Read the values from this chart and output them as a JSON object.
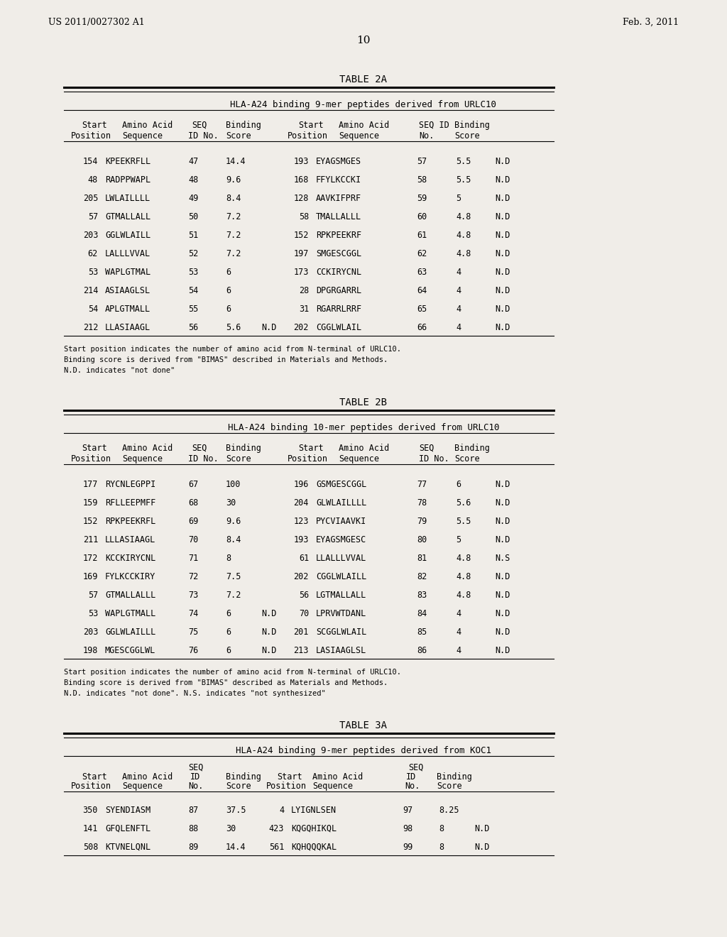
{
  "header_left": "US 2011/0027302 A1",
  "header_right": "Feb. 3, 2011",
  "page_number": "10",
  "bg_color": "#f0ede8",
  "table2a_title": "TABLE 2A",
  "table2a_subtitle": "HLA-A24 binding 9-mer peptides derived from URLC10",
  "table2a_rows": [
    [
      "154",
      "KPEEKRFLL",
      "47",
      "14.4",
      "",
      "193",
      "EYAGSMGES",
      "57",
      "5.5",
      "N.D"
    ],
    [
      "48",
      "RADPPWAPL",
      "48",
      "9.6",
      "",
      "168",
      "FFYLKCCKI",
      "58",
      "5.5",
      "N.D"
    ],
    [
      "205",
      "LWLAILLLL",
      "49",
      "8.4",
      "",
      "128",
      "AAVKIFPRF",
      "59",
      "5",
      "N.D"
    ],
    [
      "57",
      "GTMALLALL",
      "50",
      "7.2",
      "",
      "58",
      "TMALLALLL",
      "60",
      "4.8",
      "N.D"
    ],
    [
      "203",
      "GGLWLAILL",
      "51",
      "7.2",
      "",
      "152",
      "RPKPEEKRF",
      "61",
      "4.8",
      "N.D"
    ],
    [
      "62",
      "LALLLVVAL",
      "52",
      "7.2",
      "",
      "197",
      "SMGESCGGL",
      "62",
      "4.8",
      "N.D"
    ],
    [
      "53",
      "WAPLGTMAL",
      "53",
      "6",
      "",
      "173",
      "CCKIRYCNL",
      "63",
      "4",
      "N.D"
    ],
    [
      "214",
      "ASIAAGLSL",
      "54",
      "6",
      "",
      "28",
      "DPGRGARRL",
      "64",
      "4",
      "N.D"
    ],
    [
      "54",
      "APLGTMALL",
      "55",
      "6",
      "",
      "31",
      "RGARRLRRF",
      "65",
      "4",
      "N.D"
    ],
    [
      "212",
      "LLASIAAGL",
      "56",
      "5.6",
      "N.D",
      "202",
      "CGGLWLAIL",
      "66",
      "4",
      "N.D"
    ]
  ],
  "table2a_footnotes": [
    "Start position indicates the number of amino acid from N-terminal of URLC10.",
    "Binding score is derived from \"BIMAS\" described in Materials and Methods.",
    "N.D. indicates \"not done\""
  ],
  "table2b_title": "TABLE 2B",
  "table2b_subtitle": "HLA-A24 binding 10-mer peptides derived from URLC10",
  "table2b_rows": [
    [
      "177",
      "RYCNLEGPPI",
      "67",
      "100",
      "",
      "196",
      "GSMGESCGGL",
      "77",
      "6",
      "N.D"
    ],
    [
      "159",
      "RFLLEEPMFF",
      "68",
      "30",
      "",
      "204",
      "GLWLAILLLL",
      "78",
      "5.6",
      "N.D"
    ],
    [
      "152",
      "RPKPEEKRFL",
      "69",
      "9.6",
      "",
      "123",
      "PYCVIAAVKI",
      "79",
      "5.5",
      "N.D"
    ],
    [
      "211",
      "LLLASIAAGL",
      "70",
      "8.4",
      "",
      "193",
      "EYAGSMGESC",
      "80",
      "5",
      "N.D"
    ],
    [
      "172",
      "KCCKIRYCNL",
      "71",
      "8",
      "",
      "61",
      "LLALLLVVAL",
      "81",
      "4.8",
      "N.S"
    ],
    [
      "169",
      "FYLKCCKIRY",
      "72",
      "7.5",
      "",
      "202",
      "CGGLWLAILL",
      "82",
      "4.8",
      "N.D"
    ],
    [
      "57",
      "GTMALLALLL",
      "73",
      "7.2",
      "",
      "56",
      "LGTMALLALL",
      "83",
      "4.8",
      "N.D"
    ],
    [
      "53",
      "WAPLGTMALL",
      "74",
      "6",
      "N.D",
      "70",
      "LPRVWTDANL",
      "84",
      "4",
      "N.D"
    ],
    [
      "203",
      "GGLWLAILLL",
      "75",
      "6",
      "N.D",
      "201",
      "SCGGLWLAIL",
      "85",
      "4",
      "N.D"
    ],
    [
      "198",
      "MGESCGGLWL",
      "76",
      "6",
      "N.D",
      "213",
      "LASIAAGLSL",
      "86",
      "4",
      "N.D"
    ]
  ],
  "table2b_footnotes": [
    "Start position indicates the number of amino acid from N-terminal of URLC10.",
    "Binding score is derived from \"BIMAS\" described as Materials and Methods.",
    "N.D. indicates \"not done\". N.S. indicates \"not synthesized\""
  ],
  "table3a_title": "TABLE 3A",
  "table3a_subtitle": "HLA-A24 binding 9-mer peptides derived from KOC1",
  "table3a_rows": [
    [
      "350",
      "SYENDIASM",
      "87",
      "37.5",
      "",
      "4",
      "LYIGNLSEN",
      "97",
      "8.25",
      ""
    ],
    [
      "141",
      "GFQLENFTL",
      "88",
      "30",
      "",
      "423",
      "KQGQHIKQL",
      "98",
      "8",
      "N.D"
    ],
    [
      "508",
      "KTVNELQNL",
      "89",
      "14.4",
      "",
      "561",
      "KQHQQQKAL",
      "99",
      "8",
      "N.D"
    ]
  ]
}
